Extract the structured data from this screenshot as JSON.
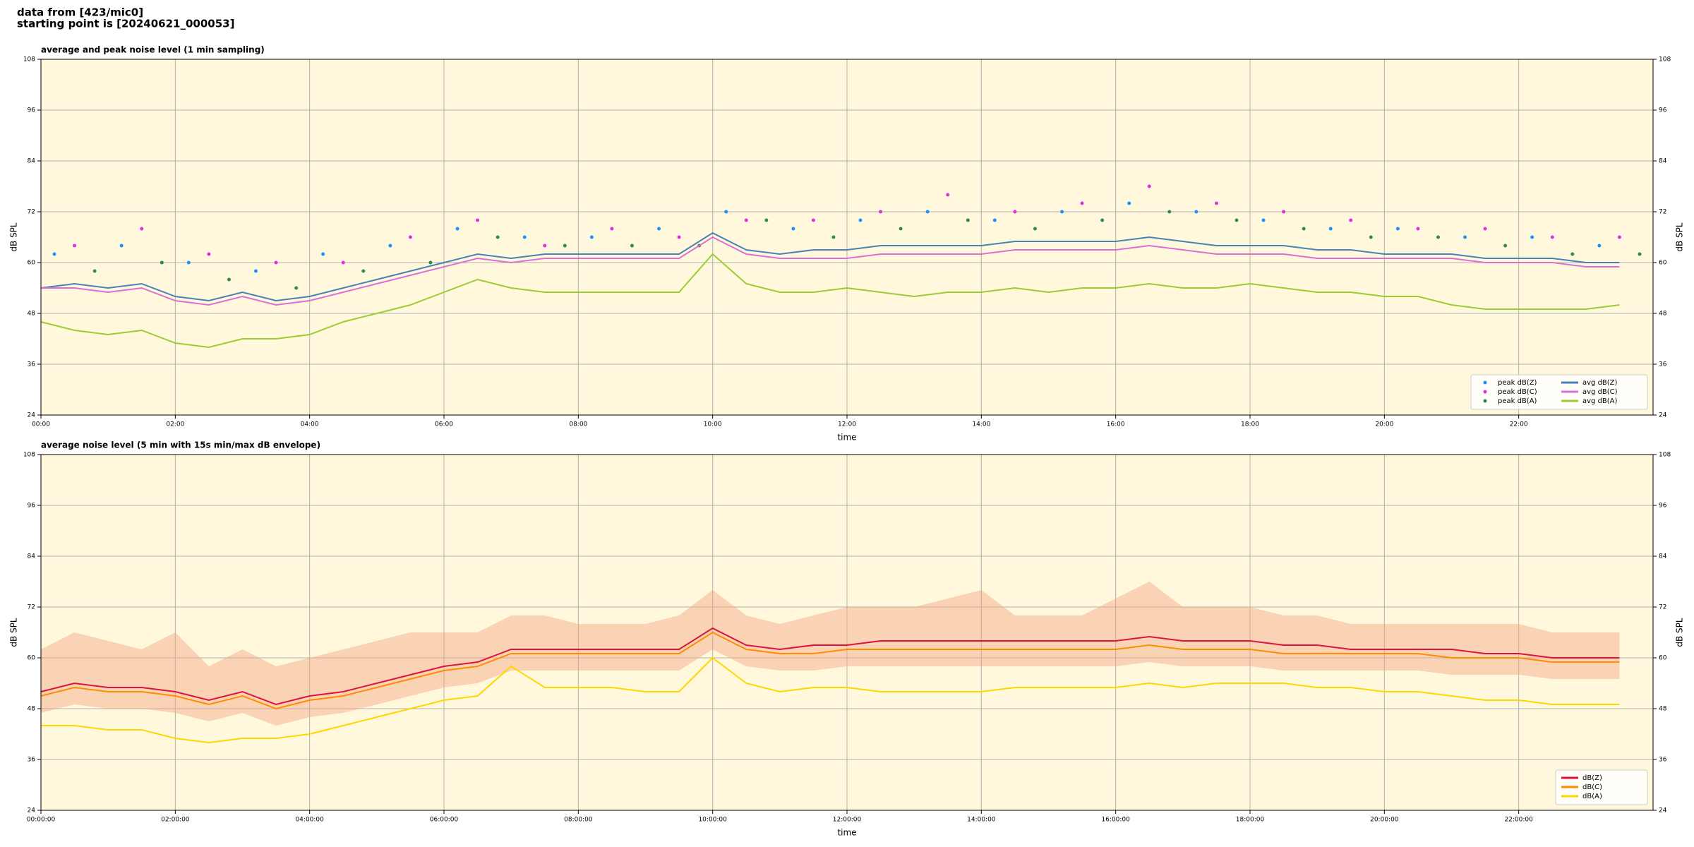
{
  "header": {
    "line1": "data from [423/mic0]",
    "line2": "starting point is [20240621_000053]"
  },
  "chart_data": [
    {
      "type": "line",
      "title": "average and peak noise level (1 min sampling)",
      "xlabel": "time",
      "ylabel": "dB SPL",
      "xlim": [
        0,
        24
      ],
      "ylim": [
        24,
        108
      ],
      "yticks": [
        24,
        36,
        48,
        60,
        72,
        84,
        96,
        108
      ],
      "xticks": [
        {
          "value": 0,
          "label": "00:00"
        },
        {
          "value": 2,
          "label": "02:00"
        },
        {
          "value": 4,
          "label": "04:00"
        },
        {
          "value": 6,
          "label": "06:00"
        },
        {
          "value": 8,
          "label": "08:00"
        },
        {
          "value": 10,
          "label": "10:00"
        },
        {
          "value": 12,
          "label": "12:00"
        },
        {
          "value": 14,
          "label": "14:00"
        },
        {
          "value": 16,
          "label": "16:00"
        },
        {
          "value": 18,
          "label": "18:00"
        },
        {
          "value": 20,
          "label": "20:00"
        },
        {
          "value": 22,
          "label": "22:00"
        }
      ],
      "grid": true,
      "legend": "lower right",
      "legend_columns": 2,
      "background": "#fff8dc",
      "x": [
        0,
        0.5,
        1,
        1.5,
        2,
        2.5,
        3,
        3.5,
        4,
        4.5,
        5,
        5.5,
        6,
        6.5,
        7,
        7.5,
        8,
        8.5,
        9,
        9.5,
        10,
        10.5,
        11,
        11.5,
        12,
        12.5,
        13,
        13.5,
        14,
        14.5,
        15,
        15.5,
        16,
        16.5,
        17,
        17.5,
        18,
        18.5,
        19,
        19.5,
        20,
        20.5,
        21,
        21.5,
        22,
        22.5,
        23,
        23.5
      ],
      "series": [
        {
          "name": "peak dB(Z)",
          "type": "scatter",
          "color": "#1e90ff",
          "x": [
            0.2,
            1.2,
            2.2,
            3.2,
            4.2,
            5.2,
            6.2,
            7.2,
            8.2,
            9.2,
            10.2,
            11.2,
            12.2,
            13.2,
            14.2,
            15.2,
            16.2,
            17.2,
            18.2,
            19.2,
            20.2,
            21.2,
            22.2,
            23.2
          ],
          "values": [
            62,
            64,
            60,
            58,
            62,
            64,
            68,
            66,
            66,
            68,
            72,
            68,
            70,
            72,
            70,
            72,
            74,
            72,
            70,
            68,
            68,
            66,
            66,
            64
          ]
        },
        {
          "name": "peak dB(C)",
          "type": "scatter",
          "color": "#e030e0",
          "x": [
            0.5,
            1.5,
            2.5,
            3.5,
            4.5,
            5.5,
            6.5,
            7.5,
            8.5,
            9.5,
            10.5,
            11.5,
            12.5,
            13.5,
            14.5,
            15.5,
            16.5,
            17.5,
            18.5,
            19.5,
            20.5,
            21.5,
            22.5,
            23.5
          ],
          "values": [
            64,
            68,
            62,
            60,
            60,
            66,
            70,
            64,
            68,
            66,
            70,
            70,
            72,
            76,
            72,
            74,
            78,
            74,
            72,
            70,
            68,
            68,
            66,
            66
          ]
        },
        {
          "name": "peak dB(A)",
          "type": "scatter",
          "color": "#2e8b57",
          "x": [
            0.8,
            1.8,
            2.8,
            3.8,
            4.8,
            5.8,
            6.8,
            7.8,
            8.8,
            9.8,
            10.8,
            11.8,
            12.8,
            13.8,
            14.8,
            15.8,
            16.8,
            17.8,
            18.8,
            19.8,
            20.8,
            21.8,
            22.8,
            23.8
          ],
          "values": [
            58,
            60,
            56,
            54,
            58,
            60,
            66,
            64,
            64,
            64,
            70,
            66,
            68,
            70,
            68,
            70,
            72,
            70,
            68,
            66,
            66,
            64,
            62,
            62
          ]
        },
        {
          "name": "avg dB(Z)",
          "type": "line",
          "color": "#4682b4",
          "values": [
            54,
            55,
            54,
            55,
            52,
            51,
            53,
            51,
            52,
            54,
            56,
            58,
            60,
            62,
            61,
            62,
            62,
            62,
            62,
            62,
            67,
            63,
            62,
            63,
            63,
            64,
            64,
            64,
            64,
            65,
            65,
            65,
            65,
            66,
            65,
            64,
            64,
            64,
            63,
            63,
            62,
            62,
            62,
            61,
            61,
            61,
            60,
            60
          ]
        },
        {
          "name": "avg dB(C)",
          "type": "line",
          "color": "#da70d6",
          "values": [
            54,
            54,
            53,
            54,
            51,
            50,
            52,
            50,
            51,
            53,
            55,
            57,
            59,
            61,
            60,
            61,
            61,
            61,
            61,
            61,
            66,
            62,
            61,
            61,
            61,
            62,
            62,
            62,
            62,
            63,
            63,
            63,
            63,
            64,
            63,
            62,
            62,
            62,
            61,
            61,
            61,
            61,
            61,
            60,
            60,
            60,
            59,
            59
          ]
        },
        {
          "name": "avg dB(A)",
          "type": "line",
          "color": "#9acd32",
          "values": [
            46,
            44,
            43,
            44,
            41,
            40,
            42,
            42,
            43,
            46,
            48,
            50,
            53,
            56,
            54,
            53,
            53,
            53,
            53,
            53,
            62,
            55,
            53,
            53,
            54,
            53,
            52,
            53,
            53,
            54,
            53,
            54,
            54,
            55,
            54,
            54,
            55,
            54,
            53,
            53,
            52,
            52,
            50,
            49,
            49,
            49,
            49,
            50
          ]
        }
      ]
    },
    {
      "type": "line",
      "title": "average noise level (5 min with 15s min/max dB envelope)",
      "xlabel": "time",
      "ylabel": "dB SPL",
      "xlim": [
        0,
        24
      ],
      "ylim": [
        24,
        108
      ],
      "yticks": [
        24,
        36,
        48,
        60,
        72,
        84,
        96,
        108
      ],
      "xticks": [
        {
          "value": 0,
          "label": "00:00:00"
        },
        {
          "value": 2,
          "label": "02:00:00"
        },
        {
          "value": 4,
          "label": "04:00:00"
        },
        {
          "value": 6,
          "label": "06:00:00"
        },
        {
          "value": 8,
          "label": "08:00:00"
        },
        {
          "value": 10,
          "label": "10:00:00"
        },
        {
          "value": 12,
          "label": "12:00:00"
        },
        {
          "value": 14,
          "label": "14:00:00"
        },
        {
          "value": 16,
          "label": "16:00:00"
        },
        {
          "value": 18,
          "label": "18:00:00"
        },
        {
          "value": 20,
          "label": "20:00:00"
        },
        {
          "value": 22,
          "label": "22:00:00"
        }
      ],
      "grid": true,
      "legend": "lower right",
      "legend_columns": 1,
      "background": "#fff8dc",
      "x": [
        0,
        0.5,
        1,
        1.5,
        2,
        2.5,
        3,
        3.5,
        4,
        4.5,
        5,
        5.5,
        6,
        6.5,
        7,
        7.5,
        8,
        8.5,
        9,
        9.5,
        10,
        10.5,
        11,
        11.5,
        12,
        12.5,
        13,
        13.5,
        14,
        14.5,
        15,
        15.5,
        16,
        16.5,
        17,
        17.5,
        18,
        18.5,
        19,
        19.5,
        20,
        20.5,
        21,
        21.5,
        22,
        22.5,
        23,
        23.5
      ],
      "envelope": {
        "color": "#f4a582",
        "max": [
          62,
          66,
          64,
          62,
          66,
          58,
          62,
          58,
          60,
          62,
          64,
          66,
          66,
          66,
          70,
          70,
          68,
          68,
          68,
          70,
          76,
          70,
          68,
          70,
          72,
          72,
          72,
          74,
          76,
          70,
          70,
          70,
          74,
          78,
          72,
          72,
          72,
          70,
          70,
          68,
          68,
          68,
          68,
          68,
          68,
          66,
          66,
          66
        ],
        "min": [
          47,
          49,
          48,
          48,
          47,
          45,
          47,
          44,
          46,
          47,
          49,
          51,
          53,
          54,
          57,
          57,
          57,
          57,
          57,
          57,
          62,
          58,
          57,
          57,
          58,
          58,
          58,
          58,
          58,
          58,
          58,
          58,
          58,
          59,
          58,
          58,
          58,
          57,
          57,
          57,
          57,
          57,
          56,
          56,
          56,
          55,
          55,
          55
        ]
      },
      "series": [
        {
          "name": "dB(Z)",
          "type": "line",
          "color": "#dc143c",
          "values": [
            52,
            54,
            53,
            53,
            52,
            50,
            52,
            49,
            51,
            52,
            54,
            56,
            58,
            59,
            62,
            62,
            62,
            62,
            62,
            62,
            67,
            63,
            62,
            63,
            63,
            64,
            64,
            64,
            64,
            64,
            64,
            64,
            64,
            65,
            64,
            64,
            64,
            63,
            63,
            62,
            62,
            62,
            62,
            61,
            61,
            60,
            60,
            60
          ]
        },
        {
          "name": "dB(C)",
          "type": "line",
          "color": "#ff8c00",
          "values": [
            51,
            53,
            52,
            52,
            51,
            49,
            51,
            48,
            50,
            51,
            53,
            55,
            57,
            58,
            61,
            61,
            61,
            61,
            61,
            61,
            66,
            62,
            61,
            61,
            62,
            62,
            62,
            62,
            62,
            62,
            62,
            62,
            62,
            63,
            62,
            62,
            62,
            61,
            61,
            61,
            61,
            61,
            60,
            60,
            60,
            59,
            59,
            59
          ]
        },
        {
          "name": "dB(A)",
          "type": "line",
          "color": "#ffd700",
          "values": [
            44,
            44,
            43,
            43,
            41,
            40,
            41,
            41,
            42,
            44,
            46,
            48,
            50,
            51,
            58,
            53,
            53,
            53,
            52,
            52,
            60,
            54,
            52,
            53,
            53,
            52,
            52,
            52,
            52,
            53,
            53,
            53,
            53,
            54,
            53,
            54,
            54,
            54,
            53,
            53,
            52,
            52,
            51,
            50,
            50,
            49,
            49,
            49
          ]
        }
      ]
    }
  ]
}
